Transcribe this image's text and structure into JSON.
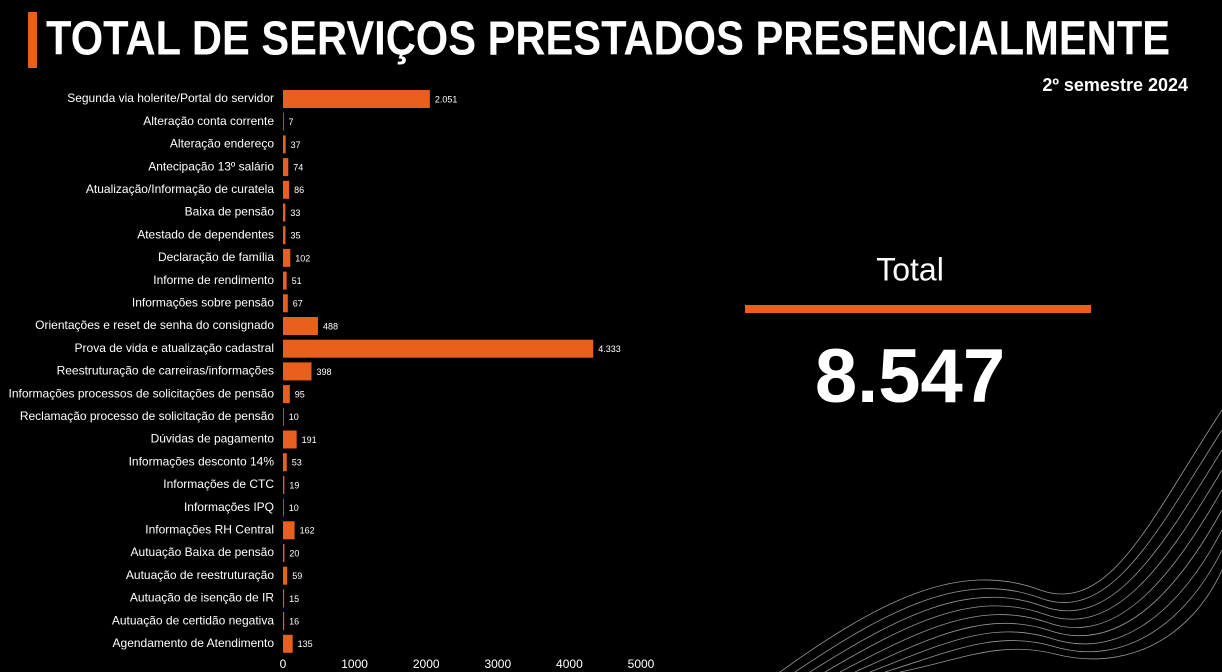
{
  "chart_data": {
    "type": "bar",
    "orientation": "horizontal",
    "title": "TOTAL DE SERVIÇOS PRESTADOS PRESENCIALMENTE",
    "subtitle": "2º semestre 2024",
    "categories": [
      "Segunda via holerite/Portal do servidor",
      "Alteração conta corrente",
      "Alteração endereço",
      "Antecipação 13º salário",
      "Atualização/Informação de curatela",
      "Baixa de pensão",
      "Atestado de dependentes",
      "Declaração de família",
      "Informe de rendimento",
      "Informações sobre pensão",
      "Orientações e reset de senha do consignado",
      "Prova de vida e atualização cadastral",
      "Reestruturação de carreiras/informações",
      "Informações processos de solicitações de pensão",
      "Reclamação processo de solicitação de pensão",
      "Dúvidas de pagamento",
      "Informações desconto 14%",
      "Informações de CTC",
      "Informações IPQ",
      "Informações RH Central",
      "Autuação Baixa de pensão",
      "Autuação de reestruturação",
      "Autuação de isenção de IR",
      "Autuação de certidão negativa",
      "Agendamento de Atendimento"
    ],
    "values": [
      2051,
      7,
      37,
      74,
      86,
      33,
      35,
      102,
      51,
      67,
      488,
      4333,
      398,
      95,
      10,
      191,
      53,
      19,
      10,
      162,
      20,
      59,
      15,
      16,
      135
    ],
    "value_labels": [
      "2.051",
      "7",
      "37",
      "74",
      "86",
      "33",
      "35",
      "102",
      "51",
      "67",
      "488",
      "4.333",
      "398",
      "95",
      "10",
      "191",
      "53",
      "19",
      "10",
      "162",
      "20",
      "59",
      "15",
      "16",
      "135"
    ],
    "color": "#e8601c",
    "xlim": [
      0,
      5000
    ],
    "xticks": [
      0,
      1000,
      2000,
      3000,
      4000,
      5000
    ],
    "grid": false,
    "total_title": "Total",
    "total_value": "8.547"
  }
}
